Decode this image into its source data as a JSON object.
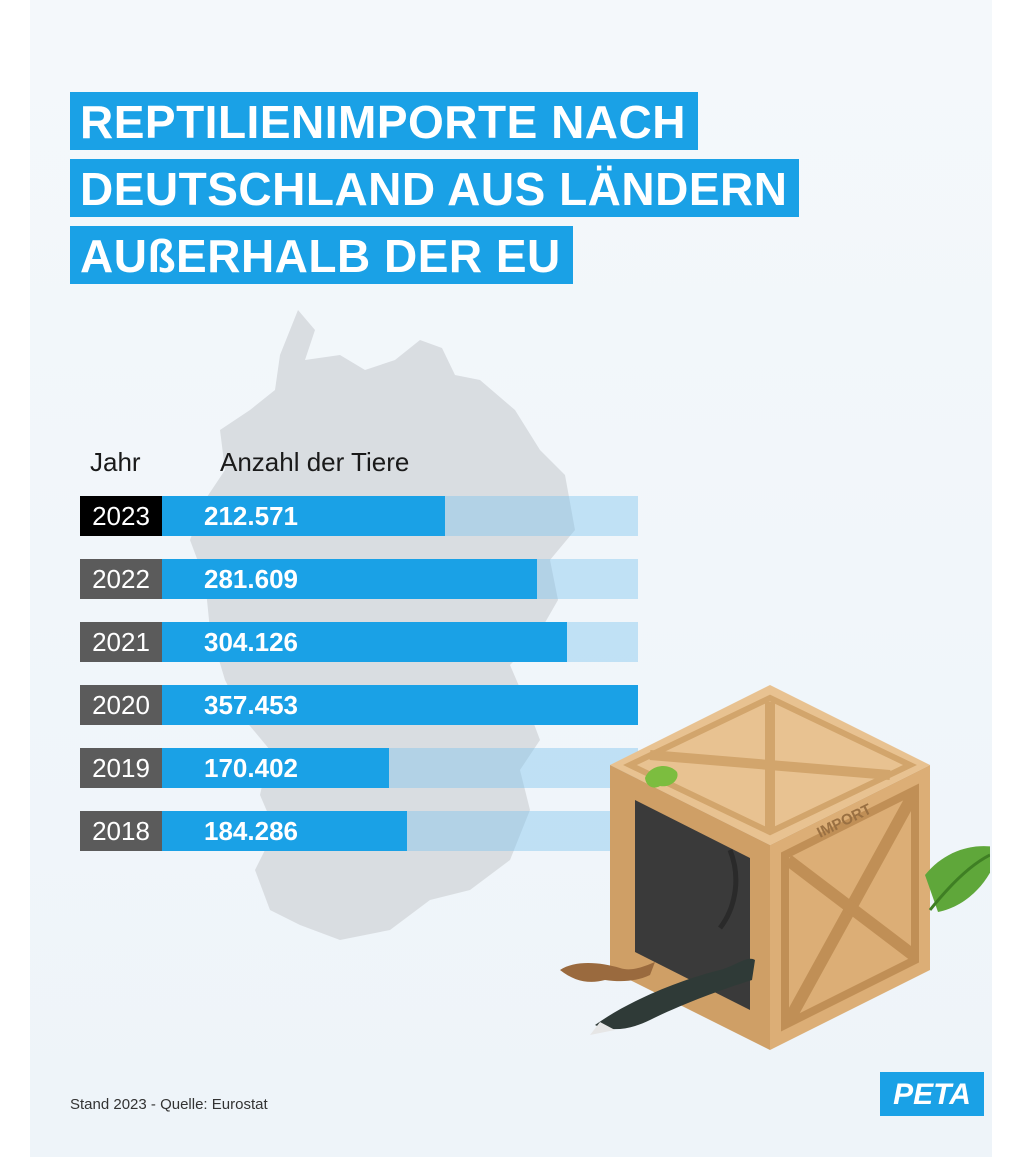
{
  "title": {
    "lines": [
      "REPTILIENIMPORTE NACH",
      "DEUTSCHLAND AUS LÄNDERN",
      "AUßERHALB DER EU"
    ]
  },
  "chart_data": {
    "type": "bar",
    "orientation": "horizontal",
    "title": "REPTILIENIMPORTE NACH DEUTSCHLAND AUS LÄNDERN AUßERHALB DER EU",
    "category_header": "Jahr",
    "value_header": "Anzahl der Tiere",
    "categories": [
      "2023",
      "2022",
      "2021",
      "2020",
      "2019",
      "2018"
    ],
    "value_labels": [
      "212.571",
      "281.609",
      "304.126",
      "357.453",
      "170.402",
      "184.286"
    ],
    "values": [
      212571,
      281609,
      304126,
      357453,
      170402,
      184286
    ],
    "xlim": [
      0,
      357453
    ],
    "highlight_category": "2023",
    "grid": false,
    "legend": "none"
  },
  "crate_label": "IMPORT",
  "footer": {
    "source": "Stand 2023 - Quelle: Eurostat",
    "logo": "PETA"
  },
  "colors": {
    "accent": "#1aa1e6",
    "year_box": "#5b5b5b",
    "year_box_current": "#000000",
    "background": "#f2f7fb"
  }
}
